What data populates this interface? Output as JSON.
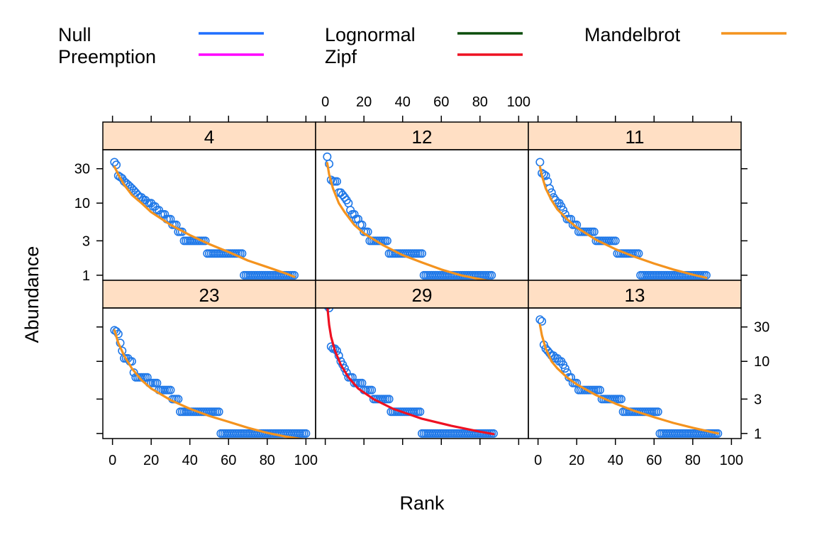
{
  "chart_data": {
    "type": "scatter",
    "xlabel": "Rank",
    "ylabel": "Abundance",
    "xlim": [
      0,
      100
    ],
    "y_scale": "log",
    "ylim": [
      0.85,
      55
    ],
    "x_ticks": [
      0,
      20,
      40,
      60,
      80,
      100
    ],
    "y_ticks": [
      1,
      3,
      10,
      30
    ],
    "y_tick_labels": [
      "1",
      "3",
      "10",
      "30"
    ],
    "point_color": "#1f78e8",
    "strip_color": "#ffdfc4",
    "legend": {
      "placement": "top",
      "entries": [
        {
          "name": "Null",
          "color": "#1f6fff"
        },
        {
          "name": "Preemption",
          "color": "#ff00ff"
        },
        {
          "name": "Lognormal",
          "color": "#0b4d0b"
        },
        {
          "name": "Zipf",
          "color": "#ee1122"
        },
        {
          "name": "Mandelbrot",
          "color": "#f4931e"
        }
      ]
    },
    "panels": [
      {
        "label": "4",
        "n": 94,
        "best_model": "Mandelbrot",
        "best_color": "#f4931e",
        "steps": [
          [
            1,
            37
          ],
          [
            2,
            34
          ],
          [
            3,
            24
          ],
          [
            4,
            23
          ],
          [
            5,
            22
          ],
          [
            6,
            20
          ],
          [
            7,
            19
          ],
          [
            8,
            18
          ],
          [
            9,
            17
          ],
          [
            10,
            16
          ],
          [
            11,
            15
          ],
          [
            12,
            14
          ],
          [
            13,
            13
          ],
          [
            14,
            12
          ],
          [
            15,
            12
          ],
          [
            16,
            11
          ],
          [
            17,
            11
          ],
          [
            18,
            10
          ],
          [
            19,
            10
          ],
          [
            20,
            10
          ],
          [
            21,
            9
          ],
          [
            22,
            9
          ],
          [
            23,
            8
          ],
          [
            24,
            8
          ],
          [
            25,
            7
          ],
          [
            26,
            7
          ],
          [
            27,
            7
          ],
          [
            28,
            6
          ],
          [
            29,
            6
          ],
          [
            30,
            6
          ],
          [
            31,
            5
          ],
          [
            33,
            5
          ],
          [
            34,
            4
          ],
          [
            36,
            4
          ],
          [
            37,
            3
          ],
          [
            49,
            2
          ],
          [
            68,
            1
          ]
        ],
        "fit": [
          [
            1,
            32
          ],
          [
            3,
            25
          ],
          [
            6,
            18
          ],
          [
            10,
            13
          ],
          [
            15,
            10
          ],
          [
            20,
            7.5
          ],
          [
            30,
            5
          ],
          [
            40,
            3.6
          ],
          [
            50,
            2.7
          ],
          [
            60,
            2.1
          ],
          [
            70,
            1.6
          ],
          [
            80,
            1.3
          ],
          [
            90,
            1.05
          ],
          [
            94,
            0.95
          ]
        ]
      },
      {
        "label": "12",
        "n": 86,
        "best_model": "Mandelbrot",
        "best_color": "#f4931e",
        "steps": [
          [
            1,
            44
          ],
          [
            2,
            35
          ],
          [
            3,
            21
          ],
          [
            4,
            20
          ],
          [
            6,
            20
          ],
          [
            7,
            14
          ],
          [
            9,
            13
          ],
          [
            10,
            12
          ],
          [
            11,
            11
          ],
          [
            12,
            10
          ],
          [
            13,
            8
          ],
          [
            14,
            7
          ],
          [
            15,
            7
          ],
          [
            16,
            6
          ],
          [
            17,
            6
          ],
          [
            18,
            5
          ],
          [
            19,
            5
          ],
          [
            20,
            4
          ],
          [
            21,
            4
          ],
          [
            22,
            4
          ],
          [
            23,
            3
          ],
          [
            31,
            3
          ],
          [
            33,
            2
          ],
          [
            51,
            1
          ]
        ],
        "fit": [
          [
            1,
            36
          ],
          [
            2,
            25
          ],
          [
            4,
            16
          ],
          [
            7,
            10
          ],
          [
            10,
            7.5
          ],
          [
            15,
            5
          ],
          [
            20,
            3.8
          ],
          [
            30,
            2.6
          ],
          [
            40,
            1.9
          ],
          [
            50,
            1.5
          ],
          [
            60,
            1.2
          ],
          [
            70,
            1.0
          ],
          [
            80,
            0.88
          ],
          [
            86,
            0.82
          ]
        ]
      },
      {
        "label": "11",
        "n": 87,
        "best_model": "Mandelbrot",
        "best_color": "#f4931e",
        "steps": [
          [
            1,
            37
          ],
          [
            2,
            26
          ],
          [
            3,
            25
          ],
          [
            4,
            24
          ],
          [
            5,
            20
          ],
          [
            6,
            16
          ],
          [
            7,
            14
          ],
          [
            8,
            12
          ],
          [
            9,
            11
          ],
          [
            10,
            10
          ],
          [
            11,
            10
          ],
          [
            12,
            9
          ],
          [
            13,
            8
          ],
          [
            14,
            7
          ],
          [
            15,
            6
          ],
          [
            17,
            6
          ],
          [
            18,
            5
          ],
          [
            20,
            5
          ],
          [
            21,
            4
          ],
          [
            29,
            4
          ],
          [
            30,
            3
          ],
          [
            40,
            3
          ],
          [
            41,
            2
          ],
          [
            53,
            1
          ]
        ],
        "fit": [
          [
            1,
            32
          ],
          [
            2,
            24
          ],
          [
            4,
            16
          ],
          [
            7,
            11
          ],
          [
            10,
            8.2
          ],
          [
            15,
            6
          ],
          [
            20,
            4.6
          ],
          [
            30,
            3.1
          ],
          [
            40,
            2.3
          ],
          [
            50,
            1.8
          ],
          [
            60,
            1.45
          ],
          [
            70,
            1.2
          ],
          [
            80,
            1.02
          ],
          [
            87,
            0.92
          ]
        ]
      },
      {
        "label": "23",
        "n": 100,
        "best_model": "Mandelbrot",
        "best_color": "#f4931e",
        "steps": [
          [
            1,
            27
          ],
          [
            2,
            26
          ],
          [
            3,
            24
          ],
          [
            4,
            18
          ],
          [
            5,
            14
          ],
          [
            6,
            11
          ],
          [
            8,
            11
          ],
          [
            9,
            10
          ],
          [
            10,
            10
          ],
          [
            11,
            7
          ],
          [
            12,
            6
          ],
          [
            18,
            6
          ],
          [
            19,
            5
          ],
          [
            23,
            5
          ],
          [
            24,
            4
          ],
          [
            30,
            4
          ],
          [
            31,
            3
          ],
          [
            34,
            3
          ],
          [
            35,
            2
          ],
          [
            56,
            1
          ]
        ],
        "fit": [
          [
            1,
            27
          ],
          [
            3,
            18
          ],
          [
            6,
            12
          ],
          [
            10,
            8
          ],
          [
            15,
            5.5
          ],
          [
            20,
            4.2
          ],
          [
            30,
            2.9
          ],
          [
            40,
            2.2
          ],
          [
            50,
            1.75
          ],
          [
            60,
            1.45
          ],
          [
            70,
            1.2
          ],
          [
            80,
            1.02
          ],
          [
            90,
            0.9
          ],
          [
            100,
            0.82
          ]
        ]
      },
      {
        "label": "29",
        "n": 87,
        "best_model": "Zipf",
        "best_color": "#ee1122",
        "steps": [
          [
            1,
            59
          ],
          [
            2,
            55
          ],
          [
            3,
            16
          ],
          [
            4,
            15
          ],
          [
            5,
            15
          ],
          [
            6,
            14
          ],
          [
            7,
            12
          ],
          [
            8,
            10
          ],
          [
            9,
            9
          ],
          [
            10,
            8
          ],
          [
            11,
            7
          ],
          [
            12,
            6
          ],
          [
            14,
            6
          ],
          [
            15,
            5
          ],
          [
            19,
            5
          ],
          [
            20,
            4
          ],
          [
            24,
            4
          ],
          [
            25,
            3
          ],
          [
            33,
            3
          ],
          [
            34,
            2
          ],
          [
            50,
            1
          ]
        ],
        "fit": [
          [
            1,
            60
          ],
          [
            2,
            32
          ],
          [
            3,
            22
          ],
          [
            5,
            14
          ],
          [
            8,
            9
          ],
          [
            12,
            6
          ],
          [
            17,
            4.2
          ],
          [
            25,
            3
          ],
          [
            35,
            2.2
          ],
          [
            50,
            1.6
          ],
          [
            65,
            1.28
          ],
          [
            80,
            1.06
          ],
          [
            87,
            0.98
          ]
        ]
      },
      {
        "label": "13",
        "n": 93,
        "best_model": "Mandelbrot",
        "best_color": "#f4931e",
        "steps": [
          [
            1,
            38
          ],
          [
            2,
            36
          ],
          [
            3,
            17
          ],
          [
            4,
            15
          ],
          [
            5,
            14
          ],
          [
            6,
            13
          ],
          [
            7,
            12
          ],
          [
            9,
            11
          ],
          [
            10,
            11
          ],
          [
            11,
            10
          ],
          [
            12,
            10
          ],
          [
            13,
            9
          ],
          [
            14,
            8
          ],
          [
            15,
            7
          ],
          [
            16,
            6
          ],
          [
            17,
            6
          ],
          [
            18,
            5
          ],
          [
            20,
            5
          ],
          [
            21,
            4
          ],
          [
            32,
            4
          ],
          [
            33,
            3
          ],
          [
            43,
            3
          ],
          [
            44,
            2
          ],
          [
            63,
            1
          ]
        ],
        "fit": [
          [
            1,
            32
          ],
          [
            2,
            23
          ],
          [
            4,
            15
          ],
          [
            7,
            10
          ],
          [
            10,
            8
          ],
          [
            15,
            6
          ],
          [
            20,
            4.8
          ],
          [
            30,
            3.4
          ],
          [
            40,
            2.6
          ],
          [
            50,
            2.05
          ],
          [
            60,
            1.68
          ],
          [
            70,
            1.4
          ],
          [
            80,
            1.2
          ],
          [
            93,
            1.0
          ]
        ]
      }
    ]
  }
}
